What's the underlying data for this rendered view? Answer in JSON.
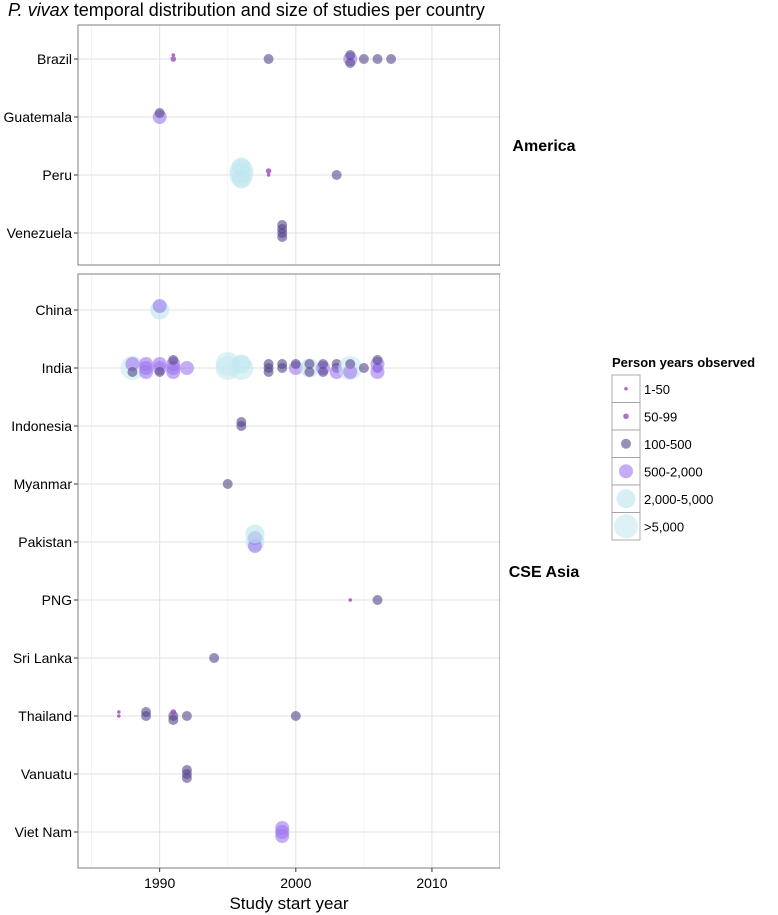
{
  "chart_data": {
    "type": "scatter",
    "title": {
      "species": "P. vivax",
      "rest": " temporal distribution and size of studies per country"
    },
    "xlabel": "Study start year",
    "ylabel": "",
    "xlim": [
      1984,
      2015
    ],
    "x_ticks": [
      1990,
      2000,
      2010
    ],
    "x_tick_labels": [
      "1990",
      "2000",
      "2010"
    ],
    "grid": true,
    "legend": {
      "title": "Person years observed",
      "position": "right",
      "categories": [
        "1-50",
        "50-99",
        "100-500",
        "500-2,000",
        "2,000-5,000",
        ">5,000"
      ]
    },
    "category_colors": [
      "#a64ec0",
      "#9b4fb5",
      "#55448a",
      "#9e77ee",
      "#bfe6ee",
      "#c6eaf0"
    ],
    "facets": [
      {
        "name": "America",
        "countries": [
          "Brazil",
          "Guatemala",
          "Peru",
          "Venezuela"
        ],
        "points": [
          {
            "country": "Brazil",
            "year": 1991,
            "size": "50-99"
          },
          {
            "country": "Brazil",
            "year": 1991,
            "size": "1-50"
          },
          {
            "country": "Brazil",
            "year": 1998,
            "size": "100-500"
          },
          {
            "country": "Brazil",
            "year": 2004,
            "size": "500-2,000"
          },
          {
            "country": "Brazil",
            "year": 2004,
            "size": "100-500"
          },
          {
            "country": "Brazil",
            "year": 2004,
            "size": "100-500"
          },
          {
            "country": "Brazil",
            "year": 2005,
            "size": "100-500"
          },
          {
            "country": "Brazil",
            "year": 2006,
            "size": "100-500"
          },
          {
            "country": "Brazil",
            "year": 2007,
            "size": "100-500"
          },
          {
            "country": "Guatemala",
            "year": 1990,
            "size": "500-2,000"
          },
          {
            "country": "Guatemala",
            "year": 1990,
            "size": "100-500"
          },
          {
            "country": "Peru",
            "year": 1996,
            "size": ">5,000"
          },
          {
            "country": "Peru",
            "year": 1996,
            "size": ">5,000"
          },
          {
            "country": "Peru",
            "year": 1996,
            "size": "2,000-5,000"
          },
          {
            "country": "Peru",
            "year": 1996,
            "size": "2,000-5,000"
          },
          {
            "country": "Peru",
            "year": 1998,
            "size": "1-50"
          },
          {
            "country": "Peru",
            "year": 1998,
            "size": "50-99"
          },
          {
            "country": "Peru",
            "year": 2003,
            "size": "100-500"
          },
          {
            "country": "Venezuela",
            "year": 1999,
            "size": "100-500"
          },
          {
            "country": "Venezuela",
            "year": 1999,
            "size": "100-500"
          },
          {
            "country": "Venezuela",
            "year": 1999,
            "size": "100-500"
          },
          {
            "country": "Venezuela",
            "year": 1999,
            "size": "100-500"
          }
        ]
      },
      {
        "name": "CSE Asia",
        "countries": [
          "China",
          "India",
          "Indonesia",
          "Myanmar",
          "Pakistan",
          "PNG",
          "Sri Lanka",
          "Thailand",
          "Vanuatu",
          "Viet Nam"
        ],
        "points": [
          {
            "country": "China",
            "year": 1990,
            "size": "2,000-5,000"
          },
          {
            "country": "China",
            "year": 1990,
            "size": "500-2,000"
          },
          {
            "country": "India",
            "year": 1988,
            "size": ">5,000"
          },
          {
            "country": "India",
            "year": 1988,
            "size": "500-2,000"
          },
          {
            "country": "India",
            "year": 1988,
            "size": "100-500"
          },
          {
            "country": "India",
            "year": 1989,
            "size": "500-2,000"
          },
          {
            "country": "India",
            "year": 1989,
            "size": "500-2,000"
          },
          {
            "country": "India",
            "year": 1989,
            "size": "500-2,000"
          },
          {
            "country": "India",
            "year": 1990,
            "size": "500-2,000"
          },
          {
            "country": "India",
            "year": 1990,
            "size": "500-2,000"
          },
          {
            "country": "India",
            "year": 1990,
            "size": "100-500"
          },
          {
            "country": "India",
            "year": 1991,
            "size": "500-2,000"
          },
          {
            "country": "India",
            "year": 1991,
            "size": "500-2,000"
          },
          {
            "country": "India",
            "year": 1991,
            "size": "500-2,000"
          },
          {
            "country": "India",
            "year": 1991,
            "size": "100-500"
          },
          {
            "country": "India",
            "year": 1992,
            "size": "500-2,000"
          },
          {
            "country": "India",
            "year": 1995,
            "size": ">5,000"
          },
          {
            "country": "India",
            "year": 1995,
            "size": ">5,000"
          },
          {
            "country": "India",
            "year": 1996,
            "size": ">5,000"
          },
          {
            "country": "India",
            "year": 1996,
            "size": "2,000-5,000"
          },
          {
            "country": "India",
            "year": 1998,
            "size": "100-500"
          },
          {
            "country": "India",
            "year": 1998,
            "size": "100-500"
          },
          {
            "country": "India",
            "year": 1998,
            "size": "100-500"
          },
          {
            "country": "India",
            "year": 1999,
            "size": "100-500"
          },
          {
            "country": "India",
            "year": 1999,
            "size": "100-500"
          },
          {
            "country": "India",
            "year": 2000,
            "size": "500-2,000"
          },
          {
            "country": "India",
            "year": 2000,
            "size": "100-500"
          },
          {
            "country": "India",
            "year": 2001,
            "size": "2,000-5,000"
          },
          {
            "country": "India",
            "year": 2001,
            "size": "100-500"
          },
          {
            "country": "India",
            "year": 2001,
            "size": "100-500"
          },
          {
            "country": "India",
            "year": 2002,
            "size": "500-2,000"
          },
          {
            "country": "India",
            "year": 2002,
            "size": "100-500"
          },
          {
            "country": "India",
            "year": 2002,
            "size": "100-500"
          },
          {
            "country": "India",
            "year": 2003,
            "size": "100-500"
          },
          {
            "country": "India",
            "year": 2003,
            "size": "100-500"
          },
          {
            "country": "India",
            "year": 2003,
            "size": "500-2,000"
          },
          {
            "country": "India",
            "year": 2004,
            "size": ">5,000"
          },
          {
            "country": "India",
            "year": 2004,
            "size": "100-500"
          },
          {
            "country": "India",
            "year": 2004,
            "size": "500-2,000"
          },
          {
            "country": "India",
            "year": 2005,
            "size": "100-500"
          },
          {
            "country": "India",
            "year": 2006,
            "size": "100-500"
          },
          {
            "country": "India",
            "year": 2006,
            "size": "500-2,000"
          },
          {
            "country": "India",
            "year": 2006,
            "size": "500-2,000"
          },
          {
            "country": "India",
            "year": 2006,
            "size": "100-500"
          },
          {
            "country": "Indonesia",
            "year": 1996,
            "size": "100-500"
          },
          {
            "country": "Indonesia",
            "year": 1996,
            "size": "100-500"
          },
          {
            "country": "Myanmar",
            "year": 1995,
            "size": "100-500"
          },
          {
            "country": "Pakistan",
            "year": 1997,
            "size": "2,000-5,000"
          },
          {
            "country": "Pakistan",
            "year": 1997,
            "size": "500-2,000"
          },
          {
            "country": "Pakistan",
            "year": 1997,
            "size": "500-2,000"
          },
          {
            "country": "Pakistan",
            "year": 1997,
            "size": "2,000-5,000"
          },
          {
            "country": "PNG",
            "year": 2004,
            "size": "1-50"
          },
          {
            "country": "PNG",
            "year": 2006,
            "size": "100-500"
          },
          {
            "country": "Sri Lanka",
            "year": 1994,
            "size": "100-500"
          },
          {
            "country": "Thailand",
            "year": 1987,
            "size": "1-50"
          },
          {
            "country": "Thailand",
            "year": 1987,
            "size": "1-50"
          },
          {
            "country": "Thailand",
            "year": 1989,
            "size": "100-500"
          },
          {
            "country": "Thailand",
            "year": 1989,
            "size": "100-500"
          },
          {
            "country": "Thailand",
            "year": 1991,
            "size": "100-500"
          },
          {
            "country": "Thailand",
            "year": 1991,
            "size": "50-99"
          },
          {
            "country": "Thailand",
            "year": 1991,
            "size": "100-500"
          },
          {
            "country": "Thailand",
            "year": 1992,
            "size": "100-500"
          },
          {
            "country": "Thailand",
            "year": 2000,
            "size": "100-500"
          },
          {
            "country": "Vanuatu",
            "year": 1992,
            "size": "100-500"
          },
          {
            "country": "Vanuatu",
            "year": 1992,
            "size": "100-500"
          },
          {
            "country": "Vanuatu",
            "year": 1992,
            "size": "100-500"
          },
          {
            "country": "Viet Nam",
            "year": 1999,
            "size": "500-2,000"
          },
          {
            "country": "Viet Nam",
            "year": 1999,
            "size": "500-2,000"
          },
          {
            "country": "Viet Nam",
            "year": 1999,
            "size": "500-2,000"
          }
        ]
      }
    ]
  }
}
